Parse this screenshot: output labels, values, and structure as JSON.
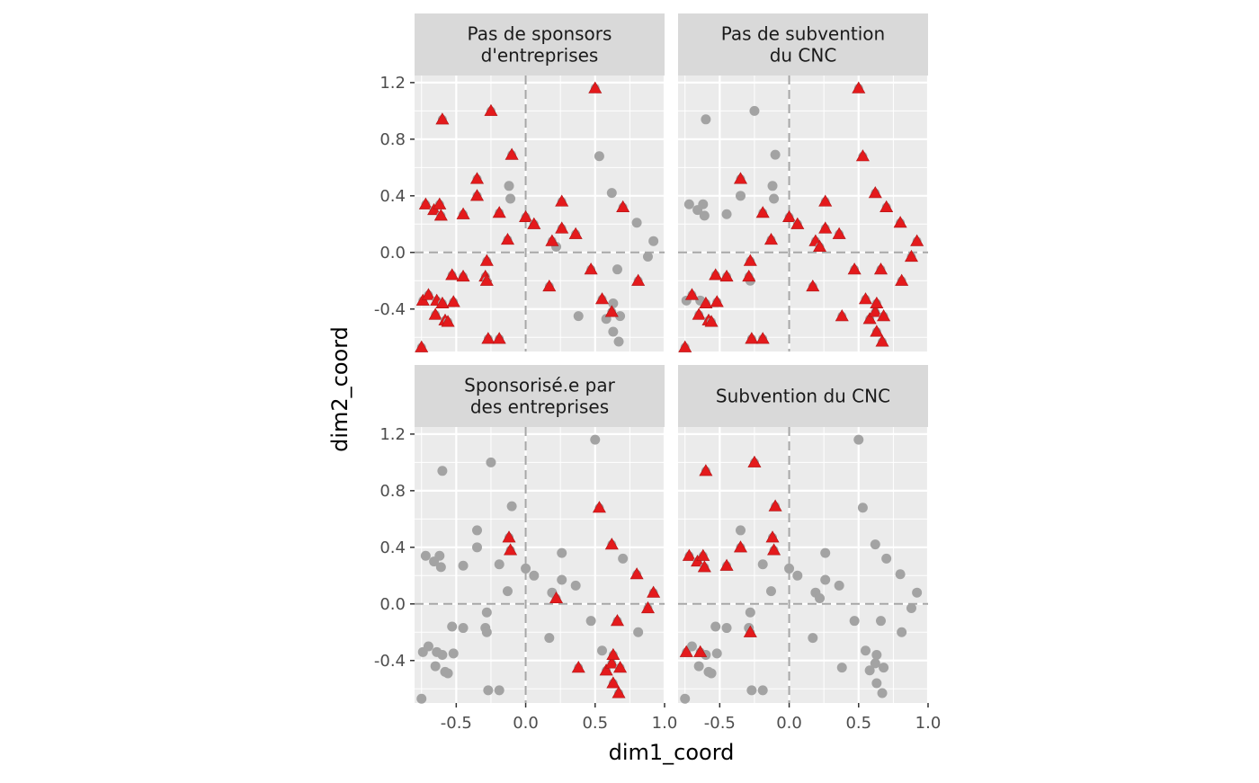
{
  "chart_data": {
    "type": "scatter",
    "xlabel": "dim1_coord",
    "ylabel": "dim2_coord",
    "xlim": [
      -0.8,
      1.0
    ],
    "ylim": [
      -0.7,
      1.25
    ],
    "x_ticks": [
      -0.5,
      0.0,
      0.5,
      1.0
    ],
    "x_tick_labels": [
      "-0.5",
      "0.0",
      "0.5",
      "1.0"
    ],
    "y_ticks": [
      -0.4,
      0.0,
      0.4,
      0.8,
      1.2
    ],
    "y_tick_labels": [
      "-0.4",
      "0.0",
      "0.4",
      "0.8",
      "1.2"
    ],
    "grid": true,
    "reference_lines": {
      "x": 0,
      "y": 0
    },
    "colors": {
      "panel_background": "#ebebeb",
      "strip_background": "#d9d9d9",
      "grid": "#ffffff",
      "background_point": "#a3a3a3",
      "highlight_point": "#e41a1c",
      "reference_line": "#a6a6a6"
    },
    "points": [
      [
        -0.75,
        -0.67
      ],
      [
        -0.74,
        -0.34
      ],
      [
        -0.72,
        0.34
      ],
      [
        -0.7,
        -0.3
      ],
      [
        -0.66,
        0.3
      ],
      [
        -0.65,
        -0.44
      ],
      [
        -0.64,
        -0.34
      ],
      [
        -0.62,
        0.34
      ],
      [
        -0.61,
        0.26
      ],
      [
        -0.6,
        0.94
      ],
      [
        -0.6,
        -0.36
      ],
      [
        -0.58,
        -0.48
      ],
      [
        -0.56,
        -0.49
      ],
      [
        -0.53,
        -0.16
      ],
      [
        -0.52,
        -0.35
      ],
      [
        -0.45,
        0.27
      ],
      [
        -0.45,
        -0.17
      ],
      [
        -0.35,
        0.4
      ],
      [
        -0.35,
        0.52
      ],
      [
        -0.29,
        -0.17
      ],
      [
        -0.28,
        -0.2
      ],
      [
        -0.28,
        -0.06
      ],
      [
        -0.27,
        -0.61
      ],
      [
        -0.25,
        1.0
      ],
      [
        -0.19,
        0.28
      ],
      [
        -0.19,
        -0.61
      ],
      [
        -0.13,
        0.09
      ],
      [
        -0.12,
        0.47
      ],
      [
        -0.11,
        0.38
      ],
      [
        -0.1,
        0.69
      ],
      [
        0.0,
        0.25
      ],
      [
        0.06,
        0.2
      ],
      [
        0.17,
        -0.24
      ],
      [
        0.19,
        0.08
      ],
      [
        0.22,
        0.04
      ],
      [
        0.26,
        0.36
      ],
      [
        0.26,
        0.17
      ],
      [
        0.36,
        0.13
      ],
      [
        0.38,
        -0.45
      ],
      [
        0.47,
        -0.12
      ],
      [
        0.5,
        1.16
      ],
      [
        0.53,
        0.68
      ],
      [
        0.55,
        -0.33
      ],
      [
        0.58,
        -0.47
      ],
      [
        0.62,
        0.42
      ],
      [
        0.62,
        -0.42
      ],
      [
        0.63,
        -0.36
      ],
      [
        0.63,
        -0.56
      ],
      [
        0.66,
        -0.12
      ],
      [
        0.67,
        -0.63
      ],
      [
        0.68,
        -0.45
      ],
      [
        0.7,
        0.32
      ],
      [
        0.8,
        0.21
      ],
      [
        0.81,
        -0.2
      ],
      [
        0.88,
        -0.03
      ],
      [
        0.92,
        0.08
      ]
    ],
    "panels": [
      {
        "title": "Pas de sponsors\nd'entreprises",
        "highlighted": [
          0,
          1,
          2,
          3,
          4,
          5,
          6,
          7,
          8,
          9,
          10,
          11,
          12,
          13,
          14,
          15,
          16,
          17,
          18,
          19,
          20,
          21,
          22,
          23,
          24,
          25,
          26,
          29,
          30,
          31,
          32,
          33,
          35,
          36,
          37,
          39,
          40,
          42,
          45,
          51,
          53
        ]
      },
      {
        "title": "Pas de subvention\ndu CNC",
        "highlighted": [
          0,
          3,
          5,
          10,
          11,
          12,
          13,
          14,
          16,
          18,
          19,
          21,
          22,
          24,
          25,
          26,
          30,
          31,
          32,
          33,
          34,
          35,
          36,
          37,
          38,
          39,
          40,
          41,
          42,
          43,
          44,
          45,
          46,
          47,
          48,
          49,
          50,
          51,
          52,
          53,
          54,
          55
        ]
      },
      {
        "title": "Sponsorisé.e par\ndes entreprises",
        "highlighted": [
          27,
          28,
          34,
          38,
          41,
          43,
          44,
          45,
          46,
          47,
          48,
          49,
          50,
          52,
          54,
          55
        ]
      },
      {
        "title": "Subvention du CNC",
        "highlighted": [
          1,
          2,
          4,
          6,
          7,
          8,
          9,
          15,
          17,
          20,
          23,
          27,
          28,
          29
        ]
      }
    ]
  }
}
